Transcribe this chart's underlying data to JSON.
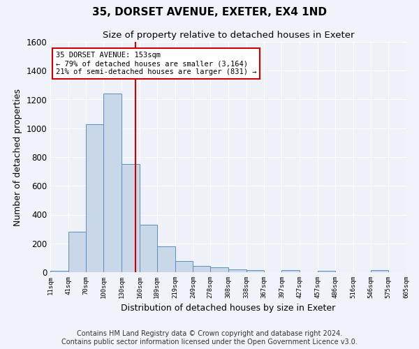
{
  "title": "35, DORSET AVENUE, EXETER, EX4 1ND",
  "subtitle": "Size of property relative to detached houses in Exeter",
  "xlabel": "Distribution of detached houses by size in Exeter",
  "ylabel": "Number of detached properties",
  "bar_values": [
    10,
    280,
    1030,
    1240,
    750,
    330,
    180,
    80,
    45,
    35,
    20,
    15,
    0,
    15,
    0,
    10,
    0,
    0,
    15,
    0
  ],
  "bin_edges": [
    11,
    41,
    70,
    100,
    130,
    160,
    189,
    219,
    249,
    278,
    308,
    338,
    367,
    397,
    427,
    457,
    486,
    516,
    546,
    575,
    605
  ],
  "tick_labels": [
    "11sqm",
    "41sqm",
    "70sqm",
    "100sqm",
    "130sqm",
    "160sqm",
    "189sqm",
    "219sqm",
    "249sqm",
    "278sqm",
    "308sqm",
    "338sqm",
    "367sqm",
    "397sqm",
    "427sqm",
    "457sqm",
    "486sqm",
    "516sqm",
    "546sqm",
    "575sqm",
    "605sqm"
  ],
  "bar_color": "#c8d8e8",
  "bar_edge_color": "#5a8fc0",
  "vline_x": 153,
  "vline_color": "#cc0000",
  "ylim": [
    0,
    1600
  ],
  "yticks": [
    0,
    200,
    400,
    600,
    800,
    1000,
    1200,
    1400,
    1600
  ],
  "annotation_title": "35 DORSET AVENUE: 153sqm",
  "annotation_line1": "← 79% of detached houses are smaller (3,164)",
  "annotation_line2": "21% of semi-detached houses are larger (831) →",
  "annotation_box_color": "#ffffff",
  "annotation_border_color": "#cc0000",
  "footer_line1": "Contains HM Land Registry data © Crown copyright and database right 2024.",
  "footer_line2": "Contains public sector information licensed under the Open Government Licence v3.0.",
  "background_color": "#f0f4fa",
  "plot_background_color": "#eef2f8",
  "title_fontsize": 11,
  "subtitle_fontsize": 9.5,
  "xlabel_fontsize": 9,
  "ylabel_fontsize": 9,
  "footer_fontsize": 7
}
